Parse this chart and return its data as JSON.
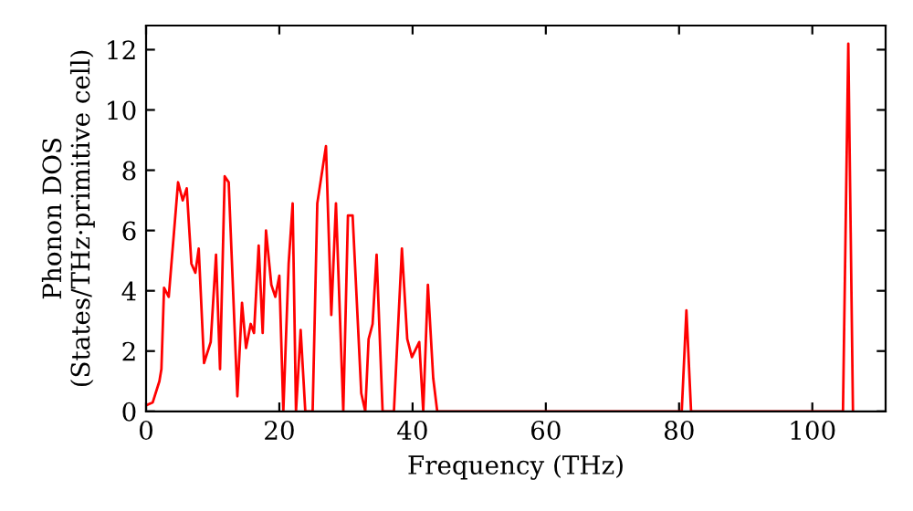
{
  "chart_data": {
    "type": "line",
    "xlabel": "Frequency (THz)",
    "ylabel": "Phonon DOS\n(States/THz·primitive cell)",
    "xlim": [
      0,
      111
    ],
    "ylim": [
      0,
      12.8
    ],
    "xticks": [
      0,
      20,
      40,
      60,
      80,
      100
    ],
    "yticks": [
      0,
      2,
      4,
      6,
      8,
      10,
      12
    ],
    "grid": false,
    "legend": false,
    "marker": "none",
    "line_style": "solid",
    "series": [
      {
        "color": "#ff0000",
        "x": [
          0,
          1,
          2,
          2.3,
          2.7,
          3.4,
          4.8,
          5.5,
          6.1,
          6.8,
          7.4,
          7.9,
          8.7,
          9.7,
          10.5,
          11.1,
          11.8,
          12.4,
          13.7,
          14.4,
          15.0,
          15.7,
          16.2,
          16.9,
          17.5,
          18.0,
          18.8,
          19.4,
          20.0,
          20.6,
          21.4,
          22.0,
          22.5,
          23.2,
          23.9,
          25.0,
          25.7,
          27.0,
          27.8,
          28.5,
          29.6,
          30.3,
          31.0,
          32.3,
          32.9,
          33.4,
          34.0,
          34.6,
          35.5,
          37.2,
          38.4,
          39.2,
          39.9,
          41.0,
          41.6,
          42.3,
          43.1,
          43.7,
          80.4,
          81.1,
          81.8,
          104.6,
          105.4,
          106.1
        ],
        "values": [
          0.2,
          0.3,
          1.0,
          1.4,
          4.1,
          3.8,
          7.6,
          7.0,
          7.4,
          4.9,
          4.6,
          5.4,
          1.6,
          2.3,
          5.2,
          1.4,
          7.8,
          7.6,
          0.5,
          3.6,
          2.1,
          2.9,
          2.6,
          5.5,
          2.6,
          6.0,
          4.2,
          3.8,
          4.5,
          0,
          4.9,
          6.9,
          0,
          2.7,
          0,
          0,
          6.9,
          8.8,
          3.2,
          6.9,
          0,
          6.5,
          6.5,
          0.6,
          0,
          2.4,
          2.9,
          5.2,
          0,
          0,
          5.4,
          2.4,
          1.8,
          2.3,
          0,
          4.2,
          1.1,
          0,
          0,
          3.35,
          0,
          0,
          12.2,
          0
        ]
      }
    ]
  }
}
